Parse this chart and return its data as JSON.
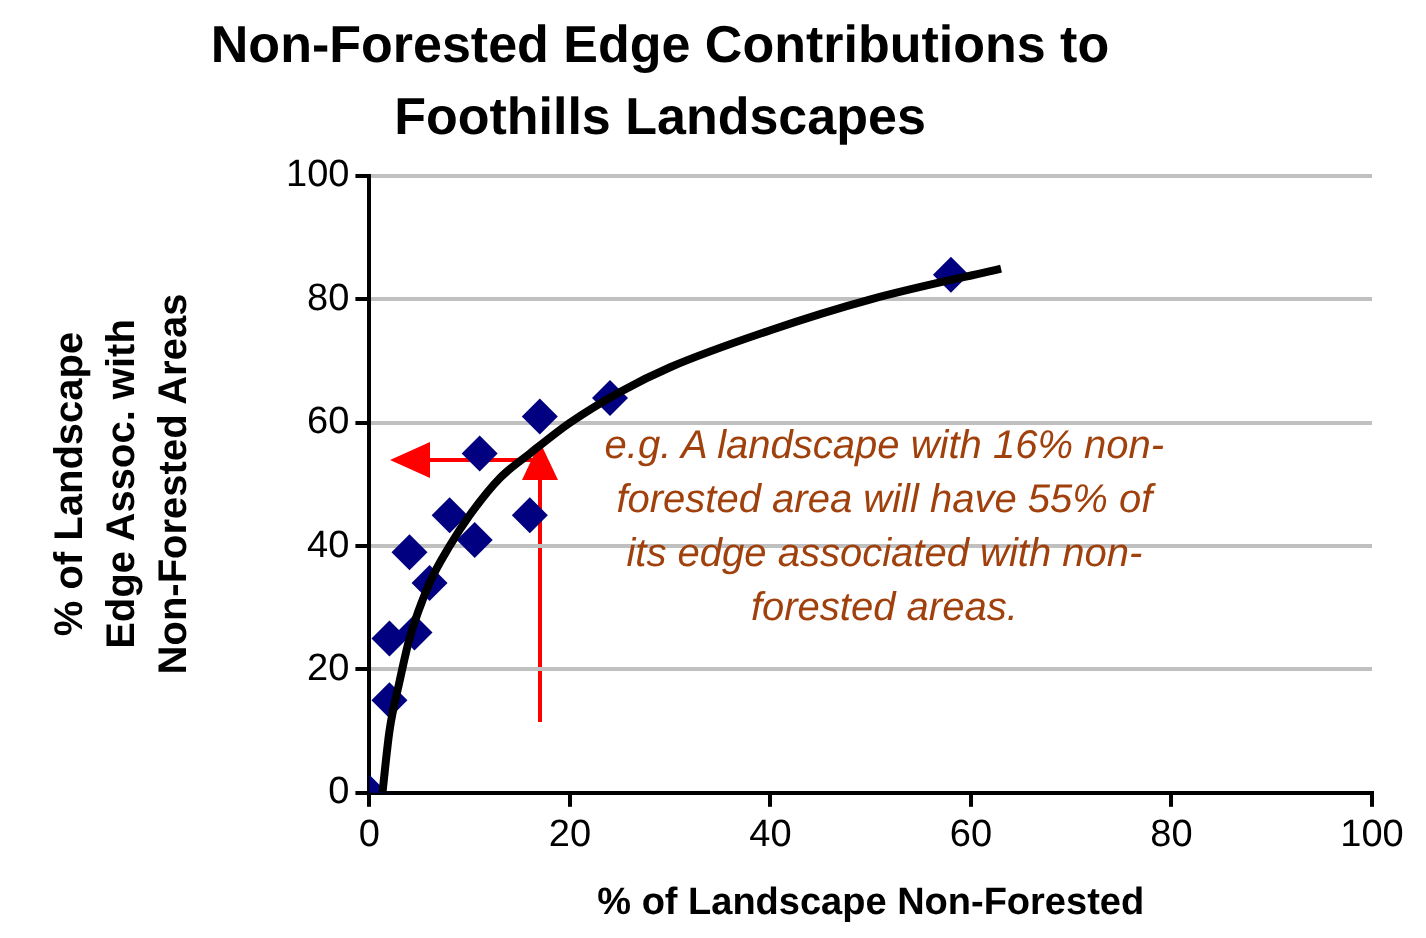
{
  "chart_data": {
    "type": "scatter",
    "title": "Non-Forested Edge Contributions to Foothills Landscapes",
    "xlabel": "% of Landscape Non-Forested",
    "ylabel": "% of Landscape Edge Assoc. with Non-Forested Areas",
    "series": [
      {
        "type": "scatter",
        "color": "#000080",
        "marker": "diamond",
        "x": [
          0,
          2,
          2,
          4.5,
          4,
          6,
          8,
          10.5,
          11,
          16,
          17,
          24,
          58
        ],
        "values": [
          0,
          15,
          25,
          26,
          39,
          34,
          45,
          41,
          55,
          45,
          61,
          64,
          84
        ]
      },
      {
        "type": "line",
        "color": "#000000",
        "marker": "none",
        "x": [
          1.3,
          2,
          3,
          4,
          6,
          8,
          10,
          13,
          16,
          20,
          25,
          30,
          40,
          50,
          63
        ],
        "values": [
          0,
          10,
          18,
          25,
          34,
          40,
          45,
          51,
          55,
          60,
          65,
          69,
          75,
          80,
          85
        ]
      }
    ],
    "xlim": [
      0,
      100
    ],
    "xticks": [
      0,
      20,
      40,
      60,
      80,
      100
    ],
    "ylim": [
      0,
      100
    ],
    "yticks": [
      0,
      20,
      40,
      60,
      80,
      100
    ],
    "grid": "y",
    "legend": false,
    "annotations": [
      "e.g. A landscape with 16% non-forested area will have 55% of its edge associated with non-forested areas."
    ]
  }
}
